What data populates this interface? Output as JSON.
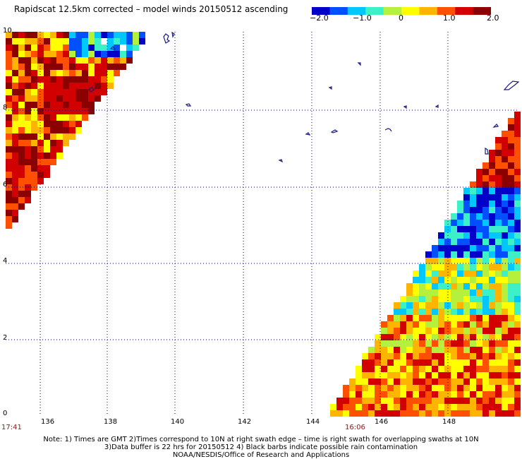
{
  "title": "Rapidscat 12.5km corrected – model winds 20150512 ascending",
  "colorbar": {
    "ticks": [
      "−2.0",
      "−1.0",
      "0",
      "1.0",
      "2.0"
    ],
    "values": [
      -2.0,
      -1.0,
      0,
      1.0,
      2.0
    ],
    "colors": [
      "#0000c8",
      "#0050ff",
      "#00c8ff",
      "#3cf0c8",
      "#b4f03c",
      "#ffff00",
      "#ffb400",
      "#ff5000",
      "#d20000",
      "#8b0000"
    ]
  },
  "map": {
    "x_ticks": [
      "136",
      "138",
      "140",
      "142",
      "144",
      "146",
      "148"
    ],
    "y_ticks": [
      "0",
      "2",
      "4",
      "6",
      "8",
      "10"
    ],
    "x_range": [
      135,
      150
    ],
    "y_range": [
      0,
      10
    ],
    "grid": true,
    "swath_times": [
      "17:41",
      "16:06"
    ]
  },
  "notes": [
    "Note: 1) Times are GMT 2)Times correspond to 10N at right swath edge – time is right swath for overlapping swaths at 10N",
    "3)Data buffer is 22 hrs for 20150512 4) Black barbs indicate possible rain contamination",
    "NOAA/NESDIS/Office of Research and Applications"
  ]
}
